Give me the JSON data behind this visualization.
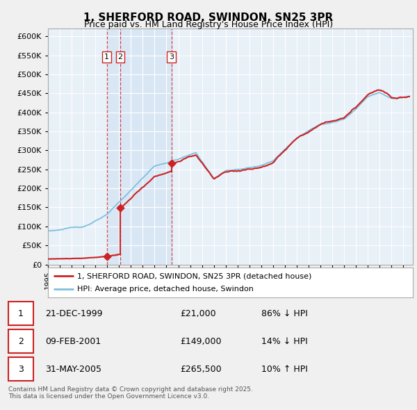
{
  "title": "1, SHERFORD ROAD, SWINDON, SN25 3PR",
  "subtitle": "Price paid vs. HM Land Registry's House Price Index (HPI)",
  "legend_label_red": "1, SHERFORD ROAD, SWINDON, SN25 3PR (detached house)",
  "legend_label_blue": "HPI: Average price, detached house, Swindon",
  "sale_times": [
    1999.972,
    2001.107,
    2005.414
  ],
  "sale_prices": [
    21000,
    149000,
    265500
  ],
  "sale_labels": [
    "1",
    "2",
    "3"
  ],
  "table_rows": [
    [
      "1",
      "21-DEC-1999",
      "£21,000",
      "86% ↓ HPI"
    ],
    [
      "2",
      "09-FEB-2001",
      "£149,000",
      "14% ↓ HPI"
    ],
    [
      "3",
      "31-MAY-2005",
      "£265,500",
      "10% ↑ HPI"
    ]
  ],
  "footer": "Contains HM Land Registry data © Crown copyright and database right 2025.\nThis data is licensed under the Open Government Licence v3.0.",
  "ylim": [
    0,
    620000
  ],
  "yticks": [
    0,
    50000,
    100000,
    150000,
    200000,
    250000,
    300000,
    350000,
    400000,
    450000,
    500000,
    550000,
    600000
  ],
  "hpi_color": "#7fbfdf",
  "price_color": "#cc2222",
  "vline_color": "#cc2222",
  "shade_color": "#ddeeff",
  "background_color": "#f0f0f0",
  "plot_bg_color": "#e8f0f8",
  "grid_color": "#ffffff",
  "xlim_start": 1995,
  "xlim_end": 2025.8
}
